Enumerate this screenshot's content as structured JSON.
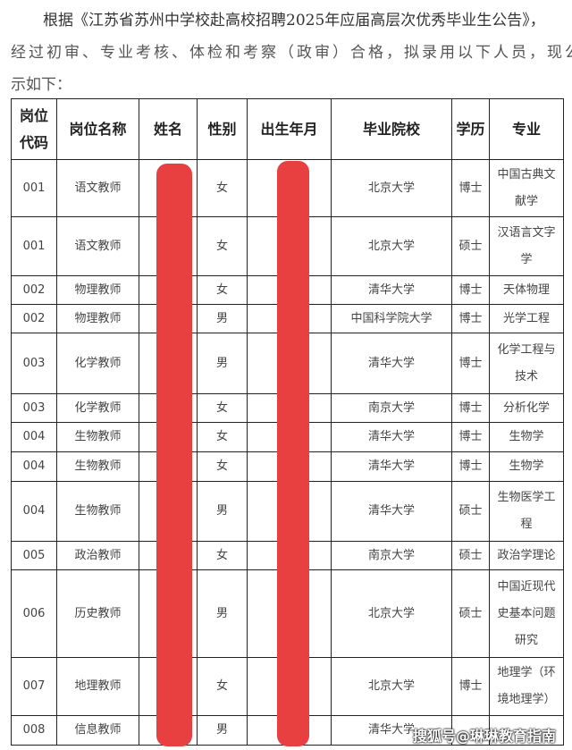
{
  "intro": {
    "line1": "根据《江苏省苏州中学校赴高校招聘2025年应届高层次优秀毕业生公告》，",
    "line2": "经过初审、专业考核、体检和考察（政审）合格，拟录用以下人员，现公",
    "line3": "示如下："
  },
  "table": {
    "headers": [
      "岗位代码",
      "岗位名称",
      "姓名",
      "性别",
      "出生年月",
      "毕业院校",
      "学历",
      "专业"
    ],
    "rows": [
      {
        "code": "001",
        "post": "语文教师",
        "gender": "女",
        "school": "北京大学",
        "degree": "博士",
        "major": "中国古典文献学"
      },
      {
        "code": "001",
        "post": "语文教师",
        "gender": "女",
        "school": "北京大学",
        "degree": "硕士",
        "major": "汉语言文字学"
      },
      {
        "code": "002",
        "post": "物理教师",
        "gender": "女",
        "school": "清华大学",
        "degree": "博士",
        "major": "天体物理"
      },
      {
        "code": "002",
        "post": "物理教师",
        "gender": "男",
        "school": "中国科学院大学",
        "degree": "博士",
        "major": "光学工程"
      },
      {
        "code": "003",
        "post": "化学教师",
        "gender": "男",
        "school": "清华大学",
        "degree": "博士",
        "major": "化学工程与技术"
      },
      {
        "code": "003",
        "post": "化学教师",
        "gender": "女",
        "school": "南京大学",
        "degree": "博士",
        "major": "分析化学"
      },
      {
        "code": "004",
        "post": "生物教师",
        "gender": "女",
        "school": "清华大学",
        "degree": "博士",
        "major": "生物学"
      },
      {
        "code": "004",
        "post": "生物教师",
        "gender": "女",
        "school": "清华大学",
        "degree": "博士",
        "major": "生物学"
      },
      {
        "code": "004",
        "post": "生物教师",
        "gender": "男",
        "school": "清华大学",
        "degree": "硕士",
        "major": "生物医学工程"
      },
      {
        "code": "005",
        "post": "政治教师",
        "gender": "女",
        "school": "南京大学",
        "degree": "硕士",
        "major": "政治学理论"
      },
      {
        "code": "006",
        "post": "历史教师",
        "gender": "男",
        "school": "北京大学",
        "degree": "硕士",
        "major": "中国近现代史基本问题研究"
      },
      {
        "code": "007",
        "post": "地理教师",
        "gender": "女",
        "school": "北京大学",
        "degree": "博士",
        "major": "地理学（环境地理学）"
      },
      {
        "code": "008",
        "post": "信息教师",
        "gender": "男",
        "school": "清华大学",
        "degree": "",
        "major": ""
      }
    ]
  },
  "watermark": "搜狐号@琳琳教育指南",
  "colors": {
    "redaction": "#e84040"
  }
}
